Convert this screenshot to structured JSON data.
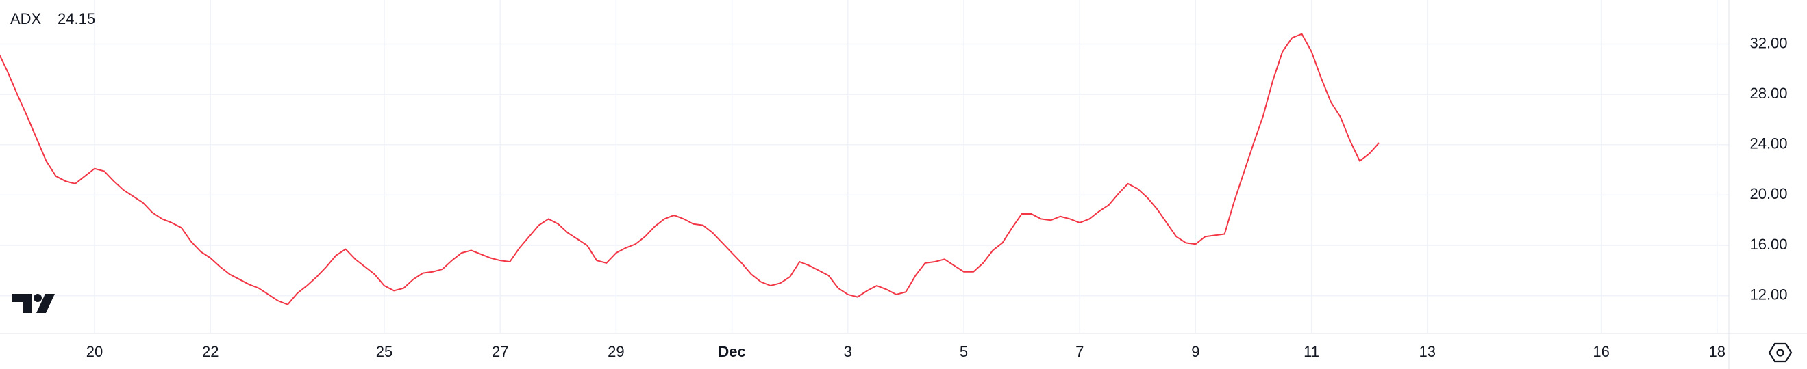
{
  "chart_data": {
    "type": "line",
    "categories": [
      null,
      null,
      null,
      null,
      null,
      null,
      null,
      null,
      null,
      null,
      "20",
      null,
      null,
      null,
      null,
      null,
      null,
      null,
      null,
      null,
      null,
      null,
      "22",
      null,
      null,
      null,
      null,
      null,
      null,
      null,
      null,
      null,
      null,
      null,
      null,
      null,
      null,
      null,
      null,
      null,
      "25",
      null,
      null,
      null,
      null,
      null,
      null,
      null,
      null,
      null,
      null,
      null,
      "27",
      null,
      null,
      null,
      null,
      null,
      null,
      null,
      null,
      null,
      null,
      null,
      "29",
      null,
      null,
      null,
      null,
      null,
      null,
      null,
      null,
      null,
      null,
      null,
      "Dec",
      null,
      null,
      null,
      null,
      null,
      null,
      null,
      null,
      null,
      null,
      null,
      "3",
      null,
      null,
      null,
      null,
      null,
      null,
      null,
      null,
      null,
      null,
      null,
      "5",
      null,
      null,
      null,
      null,
      null,
      null,
      null,
      null,
      null,
      null,
      null,
      "7",
      null,
      null,
      null,
      null,
      null,
      null,
      null,
      null,
      null,
      null,
      null,
      "9",
      null,
      null,
      null,
      null,
      null,
      null,
      null,
      null,
      null,
      null,
      null,
      "11",
      null,
      null,
      null,
      null,
      null,
      null,
      null,
      null,
      null,
      null,
      null,
      "13",
      null,
      null,
      null,
      null,
      null,
      null,
      null,
      null,
      null,
      null,
      null,
      null,
      null,
      null,
      null,
      null,
      null,
      "16",
      null,
      null,
      null,
      null,
      null,
      null,
      null,
      null,
      null,
      null,
      null,
      "18",
      null
    ],
    "series": [
      {
        "name": "ADX",
        "color": "#f23645",
        "values": [
          31.4,
          29.8,
          28.0,
          26.3,
          24.5,
          22.7,
          21.5,
          21.1,
          20.9,
          21.5,
          22.1,
          21.9,
          21.1,
          20.4,
          19.9,
          19.4,
          18.6,
          18.1,
          17.8,
          17.4,
          16.3,
          15.5,
          15.0,
          14.3,
          13.7,
          13.3,
          12.9,
          12.6,
          12.1,
          11.6,
          11.3,
          12.2,
          12.8,
          13.5,
          14.3,
          15.2,
          15.7,
          14.9,
          14.3,
          13.7,
          12.8,
          12.4,
          12.6,
          13.3,
          13.8,
          13.9,
          14.1,
          14.8,
          15.4,
          15.6,
          15.3,
          15.0,
          14.8,
          14.7,
          15.8,
          16.7,
          17.6,
          18.1,
          17.7,
          17.0,
          16.5,
          16.0,
          14.8,
          14.6,
          15.4,
          15.8,
          16.1,
          16.7,
          17.5,
          18.1,
          18.4,
          18.1,
          17.7,
          17.6,
          17.0,
          16.2,
          15.4,
          14.6,
          13.7,
          13.1,
          12.8,
          13.0,
          13.5,
          14.7,
          14.4,
          14.0,
          13.6,
          12.6,
          12.1,
          11.9,
          12.4,
          12.8,
          12.5,
          12.1,
          12.3,
          13.6,
          14.6,
          14.7,
          14.9,
          14.4,
          13.9,
          13.9,
          14.6,
          15.6,
          16.2,
          17.4,
          18.5,
          18.5,
          18.1,
          18.0,
          18.3,
          18.1,
          17.8,
          18.1,
          18.7,
          19.2,
          20.1,
          20.9,
          20.5,
          19.8,
          18.9,
          17.8,
          16.7,
          16.2,
          16.1,
          16.7,
          16.8,
          16.9,
          19.5,
          21.8,
          24.1,
          26.3,
          29.1,
          31.4,
          32.5,
          32.8,
          31.4,
          29.3,
          27.4,
          26.2,
          24.3,
          22.7,
          23.3,
          24.15,
          null,
          null,
          null,
          null,
          null,
          null,
          null,
          null,
          null,
          null,
          null,
          null,
          null,
          null,
          null,
          null,
          null,
          null,
          null,
          null,
          null,
          null,
          null,
          null,
          null,
          null,
          null,
          null,
          null,
          null,
          null,
          null,
          null,
          null,
          null,
          null
        ]
      }
    ],
    "ylim": [
      9,
      35.5
    ],
    "yticks": [
      {
        "value": 12,
        "label": "12.00"
      },
      {
        "value": 16,
        "label": "16.00"
      },
      {
        "value": 20,
        "label": "20.00"
      },
      {
        "value": 24,
        "label": "24.00"
      },
      {
        "value": 28,
        "label": "28.00"
      },
      {
        "value": 32,
        "label": "32.00"
      }
    ],
    "grid": true
  }
}
